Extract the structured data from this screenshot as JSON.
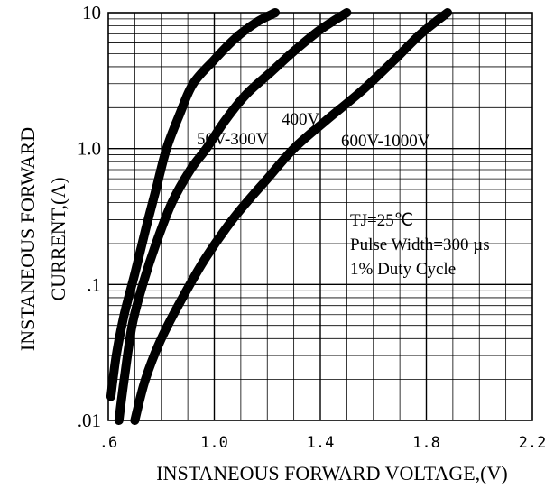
{
  "chart_data": {
    "type": "line",
    "xlabel": "INSTANEOUS FORWARD VOLTAGE,(V)",
    "ylabel_lines": [
      "INSTANEOUS FORWARD",
      "CURRENT,(A)"
    ],
    "x_ticks": [
      ".6",
      "1.0",
      "1.4",
      "1.8",
      "2.2"
    ],
    "y_ticks": [
      ".01",
      ".1",
      "1.0",
      "10"
    ],
    "xlim": [
      0.6,
      2.2
    ],
    "ylim": [
      0.01,
      10
    ],
    "y_scale": "log",
    "grid": true,
    "series": [
      {
        "name": "50V-300V",
        "points": [
          [
            0.61,
            0.015
          ],
          [
            0.63,
            0.03
          ],
          [
            0.66,
            0.06
          ],
          [
            0.7,
            0.12
          ],
          [
            0.74,
            0.25
          ],
          [
            0.78,
            0.5
          ],
          [
            0.82,
            1.0
          ],
          [
            0.87,
            1.8
          ],
          [
            0.92,
            3.0
          ],
          [
            1.0,
            4.5
          ],
          [
            1.08,
            6.5
          ],
          [
            1.16,
            8.5
          ],
          [
            1.23,
            10
          ]
        ]
      },
      {
        "name": "400V",
        "points": [
          [
            0.64,
            0.01
          ],
          [
            0.66,
            0.02
          ],
          [
            0.69,
            0.05
          ],
          [
            0.73,
            0.1
          ],
          [
            0.78,
            0.2
          ],
          [
            0.84,
            0.4
          ],
          [
            0.91,
            0.7
          ],
          [
            0.97,
            1.0
          ],
          [
            1.04,
            1.6
          ],
          [
            1.12,
            2.5
          ],
          [
            1.21,
            3.6
          ],
          [
            1.3,
            5.2
          ],
          [
            1.4,
            7.5
          ],
          [
            1.5,
            10
          ]
        ]
      },
      {
        "name": "600V-1000V",
        "points": [
          [
            0.7,
            0.01
          ],
          [
            0.74,
            0.02
          ],
          [
            0.8,
            0.04
          ],
          [
            0.88,
            0.08
          ],
          [
            0.97,
            0.16
          ],
          [
            1.08,
            0.32
          ],
          [
            1.2,
            0.6
          ],
          [
            1.3,
            1.0
          ],
          [
            1.42,
            1.6
          ],
          [
            1.56,
            2.7
          ],
          [
            1.68,
            4.5
          ],
          [
            1.78,
            7.0
          ],
          [
            1.88,
            10
          ]
        ]
      }
    ],
    "annotations": [
      "TJ=25℃",
      "Pulse Width=300 µs",
      "1% Duty Cycle"
    ]
  }
}
